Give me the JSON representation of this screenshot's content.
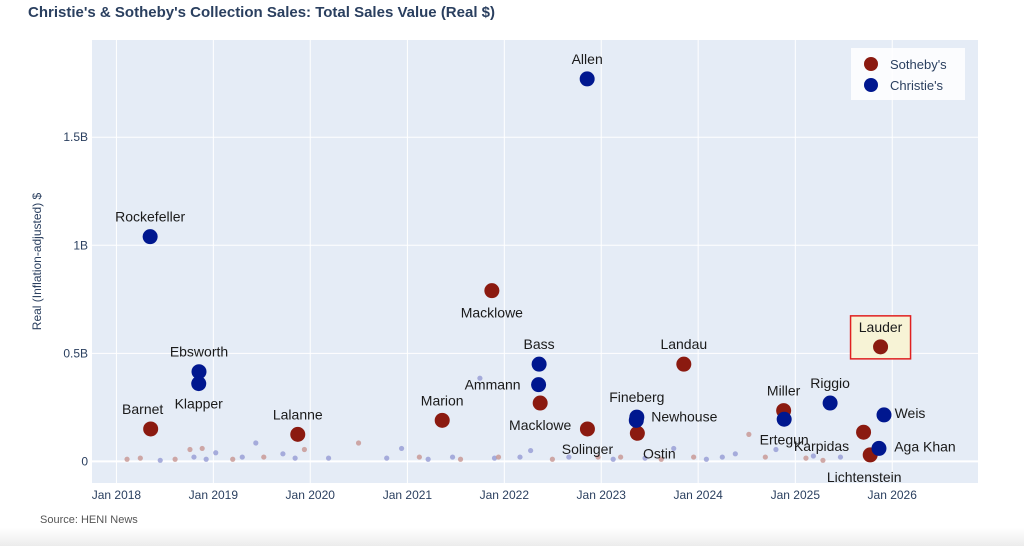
{
  "title": "Christie's & Sotheby's Collection Sales: Total Sales Value (Real $)",
  "source": "Source: HENI News",
  "colors": {
    "sothebys": "#8b1a10",
    "christies": "#00178f",
    "sothebys_minor": "#c99a96",
    "christies_minor": "#9aa0d6",
    "plot_bg": "#e5ecf6",
    "grid": "#ffffff",
    "axis_text": "#2a3f5f",
    "highlight_border": "#e02020",
    "highlight_fill": "#f7f3d6"
  },
  "chart_data": {
    "type": "scatter",
    "title": "Christie's & Sotheby's Collection Sales: Total Sales Value (Real $)",
    "xlabel": "",
    "ylabel": "Real (Inflation-adjusted) $",
    "xlim": [
      "2017-10-01",
      "2026-11-20"
    ],
    "ylim": [
      -0.1,
      1.95
    ],
    "x_ticks": [
      "Jan 2018",
      "Jan 2019",
      "Jan 2020",
      "Jan 2021",
      "Jan 2022",
      "Jan 2023",
      "Jan 2024",
      "Jan 2025",
      "Jan 2026"
    ],
    "y_ticks": [
      {
        "value": 0,
        "label": "0"
      },
      {
        "value": 0.5,
        "label": "0.5B"
      },
      {
        "value": 1,
        "label": "1B"
      },
      {
        "value": 1.5,
        "label": "1.5B"
      }
    ],
    "units": "billions of USD",
    "grid": true,
    "legend": {
      "position": "top-right",
      "entries": [
        "Sotheby's",
        "Christie's"
      ]
    },
    "series": [
      {
        "name": "Sotheby's",
        "color_key": "sothebys",
        "points": [
          {
            "date": "2018-05-10",
            "value": 0.15,
            "label": "Barnet"
          },
          {
            "date": "2019-11-15",
            "value": 0.125,
            "label": "Lalanne"
          },
          {
            "date": "2021-05-12",
            "value": 0.19,
            "label": "Marion"
          },
          {
            "date": "2021-11-15",
            "value": 0.79,
            "label": "Macklowe"
          },
          {
            "date": "2022-05-16",
            "value": 0.27,
            "label": "Macklowe"
          },
          {
            "date": "2022-11-10",
            "value": 0.15,
            "label": "Solinger"
          },
          {
            "date": "2023-05-17",
            "value": 0.13,
            "label": "Ostin"
          },
          {
            "date": "2023-11-08",
            "value": 0.45,
            "label": "Landau"
          },
          {
            "date": "2024-11-18",
            "value": 0.235,
            "label": "Miller"
          },
          {
            "date": "2025-09-15",
            "value": 0.135,
            "label": "Karpidas"
          },
          {
            "date": "2025-10-10",
            "value": 0.03,
            "label": "Lichtenstein"
          },
          {
            "date": "2025-11-18",
            "value": 0.53,
            "label": "Lauder",
            "highlight": true
          }
        ]
      },
      {
        "name": "Christie's",
        "color_key": "christies",
        "points": [
          {
            "date": "2018-05-08",
            "value": 1.04,
            "label": "Rockefeller"
          },
          {
            "date": "2018-11-08",
            "value": 0.415,
            "label": "Ebsworth"
          },
          {
            "date": "2018-11-07",
            "value": 0.36,
            "label": "Klapper"
          },
          {
            "date": "2022-05-12",
            "value": 0.45,
            "label": "Bass"
          },
          {
            "date": "2022-05-10",
            "value": 0.355,
            "label": "Ammann"
          },
          {
            "date": "2022-11-09",
            "value": 1.77,
            "label": "Allen"
          },
          {
            "date": "2023-05-15",
            "value": 0.205,
            "label": "Fineberg"
          },
          {
            "date": "2023-05-13",
            "value": 0.19,
            "label": "Newhouse"
          },
          {
            "date": "2024-11-20",
            "value": 0.195,
            "label": "Ertegun"
          },
          {
            "date": "2025-05-12",
            "value": 0.27,
            "label": "Riggio"
          },
          {
            "date": "2025-11-12",
            "value": 0.06,
            "label": "Aga Khan"
          },
          {
            "date": "2025-12-01",
            "value": 0.215,
            "label": "Weis"
          }
        ]
      }
    ],
    "minor_sales": [
      {
        "date": "2018-02-10",
        "value": 0.01,
        "house": "sothebys"
      },
      {
        "date": "2018-04-01",
        "value": 0.015,
        "house": "sothebys"
      },
      {
        "date": "2018-06-15",
        "value": 0.005,
        "house": "christies"
      },
      {
        "date": "2018-08-10",
        "value": 0.01,
        "house": "sothebys"
      },
      {
        "date": "2018-10-05",
        "value": 0.055,
        "house": "sothebys"
      },
      {
        "date": "2018-10-20",
        "value": 0.02,
        "house": "christies"
      },
      {
        "date": "2018-11-20",
        "value": 0.06,
        "house": "sothebys"
      },
      {
        "date": "2018-12-05",
        "value": 0.01,
        "house": "christies"
      },
      {
        "date": "2019-01-10",
        "value": 0.04,
        "house": "christies"
      },
      {
        "date": "2019-03-15",
        "value": 0.01,
        "house": "sothebys"
      },
      {
        "date": "2019-04-20",
        "value": 0.02,
        "house": "christies"
      },
      {
        "date": "2019-06-10",
        "value": 0.085,
        "house": "christies"
      },
      {
        "date": "2019-07-10",
        "value": 0.02,
        "house": "sothebys"
      },
      {
        "date": "2019-09-20",
        "value": 0.035,
        "house": "christies"
      },
      {
        "date": "2019-11-05",
        "value": 0.015,
        "house": "christies"
      },
      {
        "date": "2019-12-10",
        "value": 0.055,
        "house": "sothebys"
      },
      {
        "date": "2020-03-10",
        "value": 0.015,
        "house": "christies"
      },
      {
        "date": "2020-07-01",
        "value": 0.085,
        "house": "sothebys"
      },
      {
        "date": "2020-10-15",
        "value": 0.015,
        "house": "christies"
      },
      {
        "date": "2020-12-10",
        "value": 0.06,
        "house": "christies"
      },
      {
        "date": "2021-02-15",
        "value": 0.02,
        "house": "sothebys"
      },
      {
        "date": "2021-03-20",
        "value": 0.01,
        "house": "christies"
      },
      {
        "date": "2021-06-20",
        "value": 0.02,
        "house": "christies"
      },
      {
        "date": "2021-07-20",
        "value": 0.01,
        "house": "sothebys"
      },
      {
        "date": "2021-10-01",
        "value": 0.385,
        "house": "christies"
      },
      {
        "date": "2021-11-25",
        "value": 0.015,
        "house": "christies"
      },
      {
        "date": "2021-12-10",
        "value": 0.02,
        "house": "sothebys"
      },
      {
        "date": "2022-03-01",
        "value": 0.02,
        "house": "christies"
      },
      {
        "date": "2022-04-10",
        "value": 0.05,
        "house": "christies"
      },
      {
        "date": "2022-07-01",
        "value": 0.01,
        "house": "sothebys"
      },
      {
        "date": "2022-09-01",
        "value": 0.02,
        "house": "christies"
      },
      {
        "date": "2022-12-20",
        "value": 0.02,
        "house": "sothebys"
      },
      {
        "date": "2023-02-15",
        "value": 0.01,
        "house": "christies"
      },
      {
        "date": "2023-03-15",
        "value": 0.02,
        "house": "sothebys"
      },
      {
        "date": "2023-06-15",
        "value": 0.015,
        "house": "christies"
      },
      {
        "date": "2023-08-15",
        "value": 0.01,
        "house": "sothebys"
      },
      {
        "date": "2023-10-01",
        "value": 0.06,
        "house": "christies"
      },
      {
        "date": "2023-12-15",
        "value": 0.02,
        "house": "sothebys"
      },
      {
        "date": "2024-02-01",
        "value": 0.01,
        "house": "christies"
      },
      {
        "date": "2024-04-01",
        "value": 0.02,
        "house": "christies"
      },
      {
        "date": "2024-05-20",
        "value": 0.035,
        "house": "christies"
      },
      {
        "date": "2024-07-10",
        "value": 0.125,
        "house": "sothebys"
      },
      {
        "date": "2024-09-10",
        "value": 0.02,
        "house": "sothebys"
      },
      {
        "date": "2024-10-20",
        "value": 0.055,
        "house": "christies"
      },
      {
        "date": "2025-02-10",
        "value": 0.015,
        "house": "sothebys"
      },
      {
        "date": "2025-03-10",
        "value": 0.025,
        "house": "christies"
      },
      {
        "date": "2025-04-15",
        "value": 0.005,
        "house": "sothebys"
      },
      {
        "date": "2025-06-20",
        "value": 0.02,
        "house": "christies"
      }
    ]
  }
}
